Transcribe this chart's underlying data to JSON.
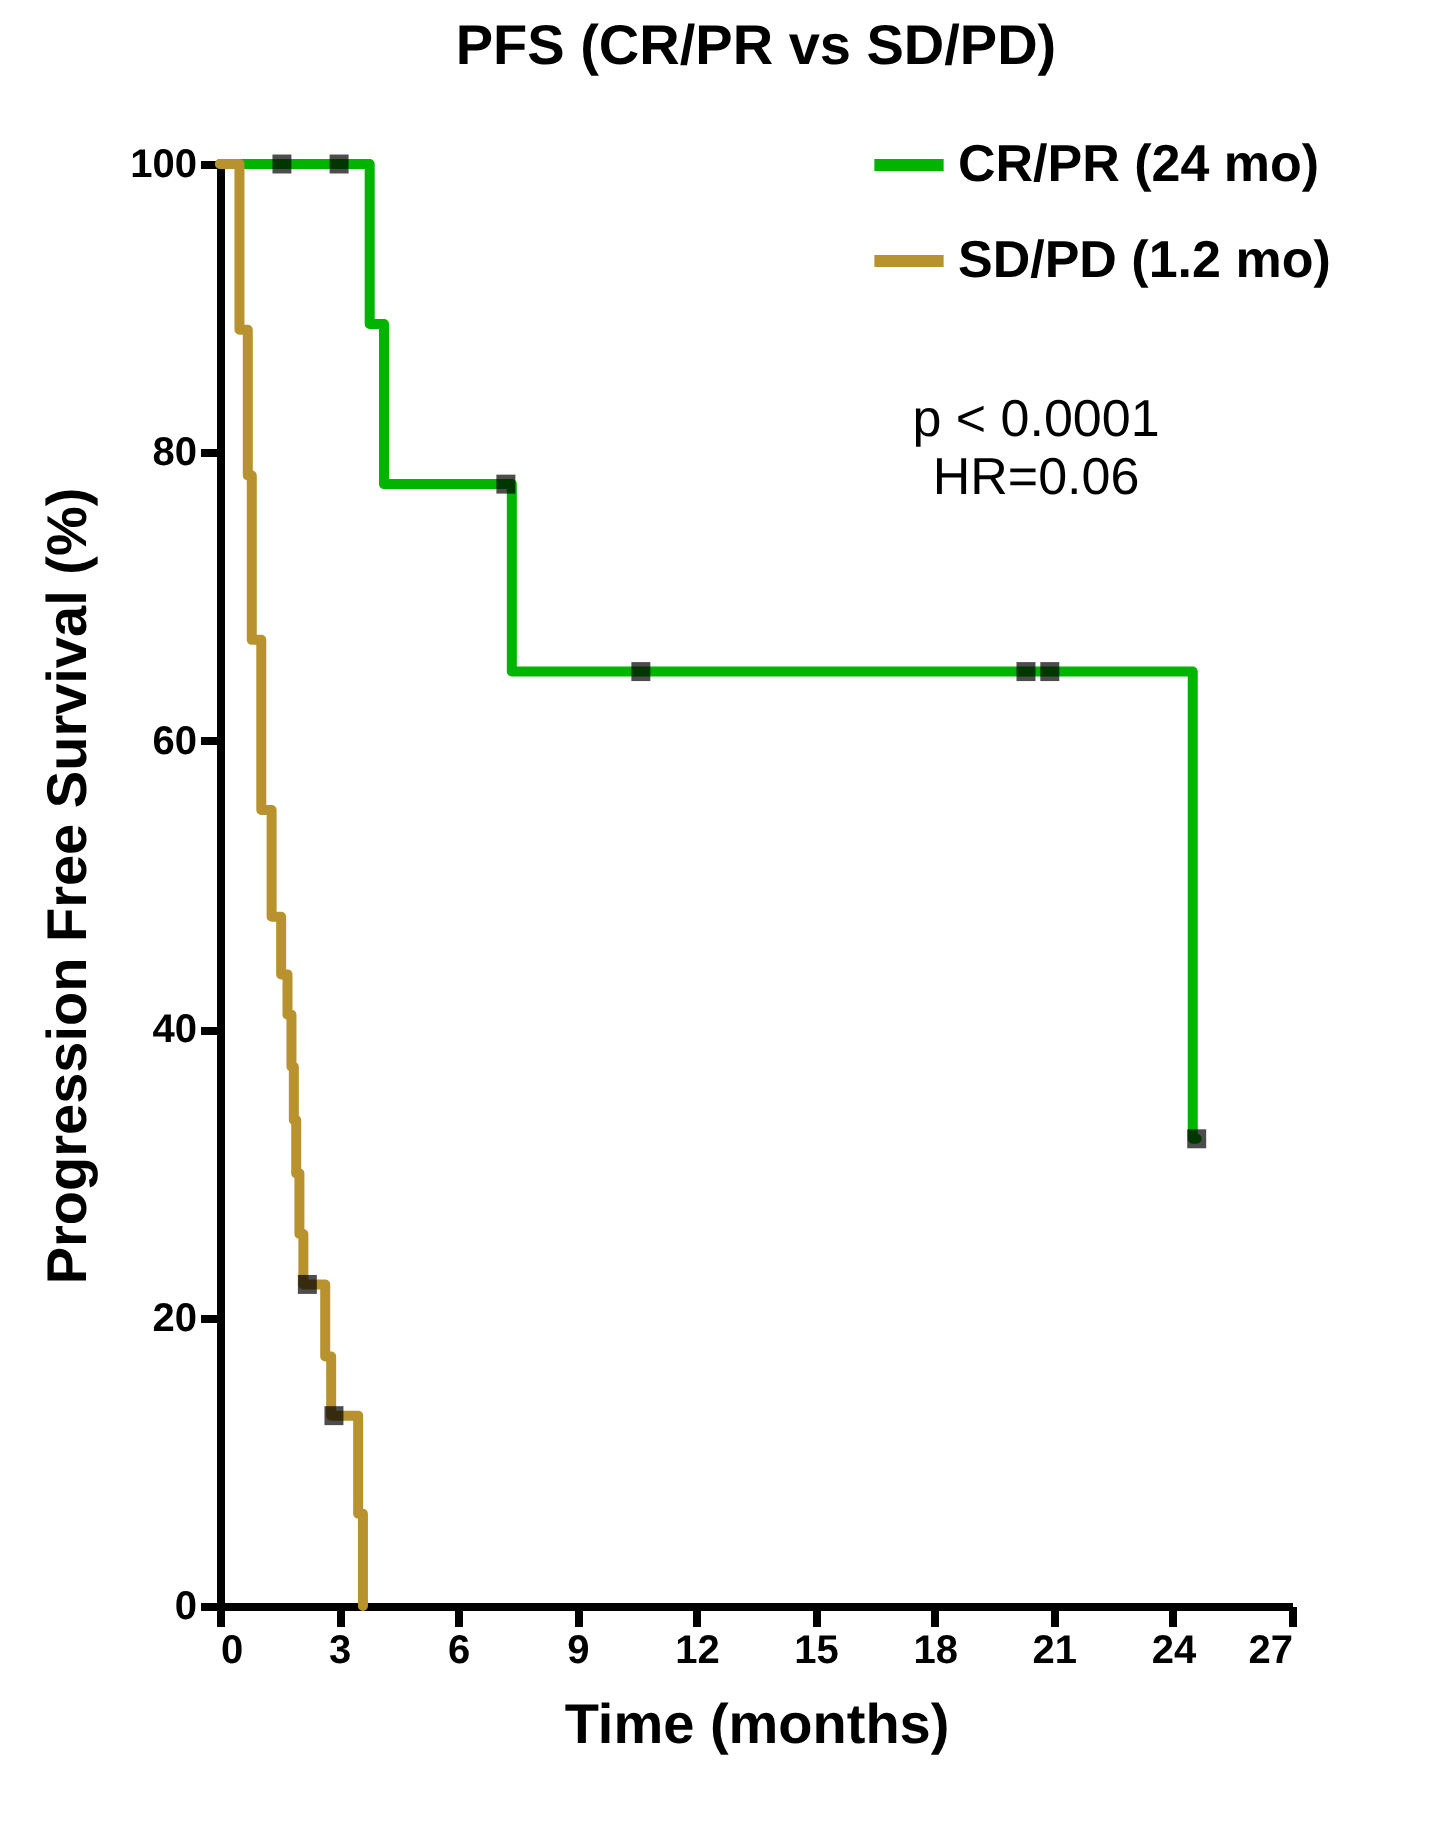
{
  "chart_data": {
    "type": "step",
    "title": "PFS (CR/PR vs SD/PD)",
    "xlabel": "Time (months)",
    "ylabel": "Progression Free Survival (%)",
    "series": [
      {
        "name": "CR/PR (24 mo)",
        "color": "#00b400",
        "x": [
          0,
          3.77,
          4.13,
          7.35,
          24.5,
          24.6
        ],
        "values": [
          100,
          88.9,
          77.8,
          64.8,
          32.4,
          32.4
        ]
      },
      {
        "name": "SD/PD (1.2 mo)",
        "color": "#b8922e",
        "x": [
          0,
          0.3,
          0.49,
          0.7,
          0.8,
          1.04,
          1.3,
          1.54,
          1.7,
          1.8,
          1.86,
          1.92,
          2.0,
          2.1,
          2.65,
          2.8,
          3.48,
          3.6
        ],
        "values": [
          100,
          100,
          88.5,
          78.4,
          67,
          55.2,
          47.8,
          43.8,
          41,
          37.4,
          33.7,
          30,
          25.8,
          22.3,
          17.3,
          13.2,
          6.4,
          0
        ]
      },
      {
        "type": "scatter",
        "color": "#000000",
        "marker": "square",
        "x": [
          1.56,
          3.0,
          7.2,
          10.6,
          20.3,
          20.9,
          24.6
        ],
        "values": [
          100,
          100,
          77.8,
          64.8,
          64.8,
          64.8,
          32.4
        ]
      },
      {
        "type": "scatter",
        "color": "#000000",
        "marker": "square",
        "x": [
          2.2,
          2.87
        ],
        "values": [
          22.3,
          13.2
        ]
      }
    ],
    "xlim": [
      0,
      27
    ],
    "xticks": [
      0,
      3,
      6,
      9,
      12,
      15,
      18,
      21,
      24,
      27
    ],
    "ylim": [
      0,
      100
    ],
    "yticks": [
      0,
      20,
      40,
      60,
      80,
      100
    ],
    "grid": false,
    "legend": "top right",
    "annotations": [
      "p < 0.0001",
      "HR=0.06"
    ]
  }
}
